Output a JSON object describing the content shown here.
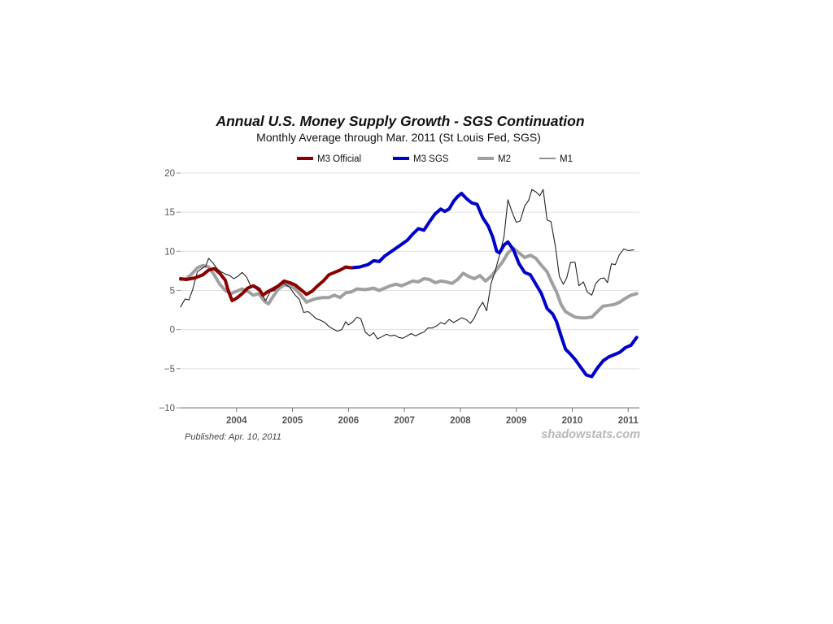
{
  "chart_data": {
    "type": "line",
    "title": "Annual U.S. Money Supply Growth - SGS Continuation",
    "subtitle": "Monthly Average through Mar. 2011  (St Louis Fed, SGS)",
    "xlabel": "",
    "ylabel": "",
    "xlim": [
      2003.0,
      2011.2
    ],
    "ylim": [
      -10,
      20
    ],
    "y_ticks": [
      -10,
      -5,
      0,
      5,
      10,
      15,
      20
    ],
    "y_tick_labels": [
      "−10",
      "−5",
      "0",
      "5",
      "10",
      "15",
      "20"
    ],
    "x_ticks": [
      2004,
      2005,
      2006,
      2007,
      2008,
      2009,
      2010,
      2011
    ],
    "x_tick_labels": [
      "2004",
      "2005",
      "2006",
      "2007",
      "2008",
      "2009",
      "2010",
      "2011"
    ],
    "grid": true,
    "legend_position": "top",
    "published": "Published: Apr. 10, 2011",
    "source": "shadowstats.com",
    "series": [
      {
        "name": "M3 Official",
        "color": "#8b0000",
        "style": "thick",
        "points": [
          [
            2003.0,
            6.5
          ],
          [
            2003.1,
            6.4
          ],
          [
            2003.25,
            6.6
          ],
          [
            2003.4,
            7.0
          ],
          [
            2003.5,
            7.6
          ],
          [
            2003.6,
            7.8
          ],
          [
            2003.7,
            7.2
          ],
          [
            2003.8,
            6.3
          ],
          [
            2003.85,
            5.0
          ],
          [
            2003.92,
            3.7
          ],
          [
            2004.0,
            4.0
          ],
          [
            2004.1,
            4.6
          ],
          [
            2004.2,
            5.3
          ],
          [
            2004.3,
            5.6
          ],
          [
            2004.4,
            5.2
          ],
          [
            2004.47,
            4.4
          ],
          [
            2004.55,
            4.8
          ],
          [
            2004.65,
            5.2
          ],
          [
            2004.75,
            5.6
          ],
          [
            2004.85,
            6.2
          ],
          [
            2004.95,
            6.0
          ],
          [
            2005.05,
            5.7
          ],
          [
            2005.15,
            5.1
          ],
          [
            2005.25,
            4.5
          ],
          [
            2005.35,
            4.9
          ],
          [
            2005.45,
            5.6
          ],
          [
            2005.55,
            6.2
          ],
          [
            2005.65,
            7.0
          ],
          [
            2005.75,
            7.3
          ],
          [
            2005.85,
            7.6
          ],
          [
            2005.95,
            8.0
          ],
          [
            2006.05,
            7.9
          ]
        ]
      },
      {
        "name": "M3 SGS",
        "color": "#0000c8",
        "style": "thick",
        "points": [
          [
            2006.05,
            7.9
          ],
          [
            2006.2,
            8.0
          ],
          [
            2006.35,
            8.3
          ],
          [
            2006.45,
            8.8
          ],
          [
            2006.55,
            8.7
          ],
          [
            2006.65,
            9.4
          ],
          [
            2006.75,
            9.9
          ],
          [
            2006.85,
            10.4
          ],
          [
            2006.95,
            10.9
          ],
          [
            2007.05,
            11.4
          ],
          [
            2007.15,
            12.2
          ],
          [
            2007.25,
            12.9
          ],
          [
            2007.35,
            12.7
          ],
          [
            2007.45,
            13.8
          ],
          [
            2007.55,
            14.8
          ],
          [
            2007.65,
            15.4
          ],
          [
            2007.72,
            15.1
          ],
          [
            2007.8,
            15.4
          ],
          [
            2007.88,
            16.4
          ],
          [
            2007.95,
            17.0
          ],
          [
            2008.02,
            17.4
          ],
          [
            2008.1,
            16.8
          ],
          [
            2008.2,
            16.2
          ],
          [
            2008.3,
            16.0
          ],
          [
            2008.4,
            14.3
          ],
          [
            2008.5,
            13.2
          ],
          [
            2008.58,
            11.8
          ],
          [
            2008.65,
            10.0
          ],
          [
            2008.7,
            9.8
          ],
          [
            2008.78,
            10.8
          ],
          [
            2008.85,
            11.2
          ],
          [
            2008.95,
            10.2
          ],
          [
            2009.05,
            8.4
          ],
          [
            2009.15,
            7.3
          ],
          [
            2009.25,
            7.0
          ],
          [
            2009.35,
            5.8
          ],
          [
            2009.45,
            4.6
          ],
          [
            2009.55,
            2.7
          ],
          [
            2009.65,
            2.0
          ],
          [
            2009.72,
            1.0
          ],
          [
            2009.8,
            -0.8
          ],
          [
            2009.88,
            -2.5
          ],
          [
            2009.95,
            -3.0
          ],
          [
            2010.05,
            -3.8
          ],
          [
            2010.15,
            -4.8
          ],
          [
            2010.25,
            -5.8
          ],
          [
            2010.35,
            -6.0
          ],
          [
            2010.45,
            -4.9
          ],
          [
            2010.55,
            -4.0
          ],
          [
            2010.65,
            -3.5
          ],
          [
            2010.75,
            -3.2
          ],
          [
            2010.85,
            -2.9
          ],
          [
            2010.95,
            -2.3
          ],
          [
            2011.05,
            -2.0
          ],
          [
            2011.15,
            -1.0
          ]
        ]
      },
      {
        "name": "M2",
        "color": "#a0a0a0",
        "style": "thick",
        "points": [
          [
            2003.0,
            6.4
          ],
          [
            2003.1,
            6.5
          ],
          [
            2003.2,
            7.1
          ],
          [
            2003.3,
            7.9
          ],
          [
            2003.4,
            8.2
          ],
          [
            2003.5,
            8.0
          ],
          [
            2003.6,
            7.0
          ],
          [
            2003.7,
            5.8
          ],
          [
            2003.8,
            5.0
          ],
          [
            2003.9,
            4.6
          ],
          [
            2004.0,
            4.9
          ],
          [
            2004.1,
            5.2
          ],
          [
            2004.2,
            4.9
          ],
          [
            2004.3,
            4.4
          ],
          [
            2004.4,
            4.6
          ],
          [
            2004.5,
            3.6
          ],
          [
            2004.57,
            3.3
          ],
          [
            2004.65,
            4.2
          ],
          [
            2004.75,
            5.2
          ],
          [
            2004.85,
            5.7
          ],
          [
            2004.95,
            5.6
          ],
          [
            2005.05,
            5.2
          ],
          [
            2005.15,
            4.4
          ],
          [
            2005.25,
            3.5
          ],
          [
            2005.35,
            3.8
          ],
          [
            2005.45,
            4.0
          ],
          [
            2005.55,
            4.1
          ],
          [
            2005.65,
            4.1
          ],
          [
            2005.75,
            4.4
          ],
          [
            2005.85,
            4.1
          ],
          [
            2005.95,
            4.7
          ],
          [
            2006.05,
            4.8
          ],
          [
            2006.15,
            5.2
          ],
          [
            2006.3,
            5.1
          ],
          [
            2006.45,
            5.3
          ],
          [
            2006.55,
            5.0
          ],
          [
            2006.65,
            5.3
          ],
          [
            2006.75,
            5.6
          ],
          [
            2006.85,
            5.8
          ],
          [
            2006.95,
            5.6
          ],
          [
            2007.05,
            5.9
          ],
          [
            2007.15,
            6.2
          ],
          [
            2007.25,
            6.1
          ],
          [
            2007.35,
            6.5
          ],
          [
            2007.45,
            6.4
          ],
          [
            2007.55,
            6.0
          ],
          [
            2007.65,
            6.2
          ],
          [
            2007.75,
            6.1
          ],
          [
            2007.85,
            5.9
          ],
          [
            2007.95,
            6.4
          ],
          [
            2008.05,
            7.2
          ],
          [
            2008.15,
            6.8
          ],
          [
            2008.25,
            6.5
          ],
          [
            2008.35,
            6.9
          ],
          [
            2008.45,
            6.2
          ],
          [
            2008.55,
            6.8
          ],
          [
            2008.65,
            7.7
          ],
          [
            2008.75,
            8.6
          ],
          [
            2008.85,
            9.8
          ],
          [
            2008.95,
            10.4
          ],
          [
            2009.05,
            9.8
          ],
          [
            2009.15,
            9.2
          ],
          [
            2009.25,
            9.5
          ],
          [
            2009.35,
            9.1
          ],
          [
            2009.45,
            8.2
          ],
          [
            2009.55,
            7.4
          ],
          [
            2009.65,
            5.8
          ],
          [
            2009.72,
            4.8
          ],
          [
            2009.8,
            3.2
          ],
          [
            2009.88,
            2.3
          ],
          [
            2009.95,
            2.0
          ],
          [
            2010.05,
            1.6
          ],
          [
            2010.15,
            1.5
          ],
          [
            2010.25,
            1.5
          ],
          [
            2010.35,
            1.6
          ],
          [
            2010.45,
            2.3
          ],
          [
            2010.55,
            3.0
          ],
          [
            2010.65,
            3.1
          ],
          [
            2010.75,
            3.2
          ],
          [
            2010.85,
            3.5
          ],
          [
            2010.95,
            4.0
          ],
          [
            2011.05,
            4.4
          ],
          [
            2011.15,
            4.6
          ]
        ]
      },
      {
        "name": "M1",
        "color": "#222222",
        "style": "thin",
        "points": [
          [
            2003.0,
            2.9
          ],
          [
            2003.08,
            3.9
          ],
          [
            2003.15,
            3.8
          ],
          [
            2003.22,
            5.2
          ],
          [
            2003.3,
            7.4
          ],
          [
            2003.38,
            7.8
          ],
          [
            2003.45,
            8.1
          ],
          [
            2003.5,
            9.1
          ],
          [
            2003.58,
            8.5
          ],
          [
            2003.65,
            7.8
          ],
          [
            2003.72,
            7.4
          ],
          [
            2003.8,
            7.1
          ],
          [
            2003.88,
            6.9
          ],
          [
            2003.95,
            6.5
          ],
          [
            2004.02,
            6.8
          ],
          [
            2004.1,
            7.3
          ],
          [
            2004.18,
            6.7
          ],
          [
            2004.25,
            5.6
          ],
          [
            2004.35,
            5.2
          ],
          [
            2004.45,
            4.6
          ],
          [
            2004.52,
            3.7
          ],
          [
            2004.6,
            4.8
          ],
          [
            2004.68,
            5.0
          ],
          [
            2004.75,
            5.6
          ],
          [
            2004.85,
            5.9
          ],
          [
            2004.95,
            5.4
          ],
          [
            2005.05,
            4.4
          ],
          [
            2005.12,
            3.9
          ],
          [
            2005.2,
            2.2
          ],
          [
            2005.28,
            2.3
          ],
          [
            2005.35,
            1.9
          ],
          [
            2005.42,
            1.4
          ],
          [
            2005.5,
            1.2
          ],
          [
            2005.58,
            0.9
          ],
          [
            2005.65,
            0.4
          ],
          [
            2005.72,
            0.1
          ],
          [
            2005.8,
            -0.2
          ],
          [
            2005.88,
            0.0
          ],
          [
            2005.95,
            1.0
          ],
          [
            2006.0,
            0.6
          ],
          [
            2006.08,
            1.0
          ],
          [
            2006.15,
            1.6
          ],
          [
            2006.22,
            1.4
          ],
          [
            2006.3,
            -0.3
          ],
          [
            2006.38,
            -0.8
          ],
          [
            2006.45,
            -0.4
          ],
          [
            2006.52,
            -1.2
          ],
          [
            2006.6,
            -0.9
          ],
          [
            2006.68,
            -0.6
          ],
          [
            2006.75,
            -0.8
          ],
          [
            2006.82,
            -0.7
          ],
          [
            2006.9,
            -1.0
          ],
          [
            2006.97,
            -1.1
          ],
          [
            2007.05,
            -0.8
          ],
          [
            2007.12,
            -0.5
          ],
          [
            2007.2,
            -0.8
          ],
          [
            2007.28,
            -0.5
          ],
          [
            2007.35,
            -0.3
          ],
          [
            2007.42,
            0.2
          ],
          [
            2007.5,
            0.2
          ],
          [
            2007.58,
            0.5
          ],
          [
            2007.65,
            0.9
          ],
          [
            2007.72,
            0.7
          ],
          [
            2007.8,
            1.3
          ],
          [
            2007.88,
            0.9
          ],
          [
            2007.95,
            1.2
          ],
          [
            2008.02,
            1.5
          ],
          [
            2008.1,
            1.3
          ],
          [
            2008.18,
            0.8
          ],
          [
            2008.25,
            1.5
          ],
          [
            2008.32,
            2.6
          ],
          [
            2008.4,
            3.5
          ],
          [
            2008.47,
            2.4
          ],
          [
            2008.55,
            5.9
          ],
          [
            2008.62,
            7.4
          ],
          [
            2008.7,
            9.5
          ],
          [
            2008.78,
            11.9
          ],
          [
            2008.85,
            16.6
          ],
          [
            2008.92,
            15.1
          ],
          [
            2009.0,
            13.7
          ],
          [
            2009.07,
            13.9
          ],
          [
            2009.15,
            15.8
          ],
          [
            2009.22,
            16.5
          ],
          [
            2009.28,
            17.9
          ],
          [
            2009.35,
            17.6
          ],
          [
            2009.42,
            17.1
          ],
          [
            2009.48,
            17.9
          ],
          [
            2009.55,
            14.0
          ],
          [
            2009.62,
            13.8
          ],
          [
            2009.7,
            10.6
          ],
          [
            2009.77,
            6.8
          ],
          [
            2009.84,
            5.8
          ],
          [
            2009.9,
            6.6
          ],
          [
            2009.97,
            8.6
          ],
          [
            2010.05,
            8.6
          ],
          [
            2010.12,
            5.6
          ],
          [
            2010.2,
            6.1
          ],
          [
            2010.27,
            4.8
          ],
          [
            2010.35,
            4.4
          ],
          [
            2010.42,
            5.9
          ],
          [
            2010.5,
            6.5
          ],
          [
            2010.57,
            6.6
          ],
          [
            2010.63,
            6.0
          ],
          [
            2010.7,
            8.4
          ],
          [
            2010.77,
            8.3
          ],
          [
            2010.84,
            9.5
          ],
          [
            2010.92,
            10.3
          ],
          [
            2011.0,
            10.1
          ],
          [
            2011.1,
            10.2
          ]
        ]
      }
    ]
  }
}
